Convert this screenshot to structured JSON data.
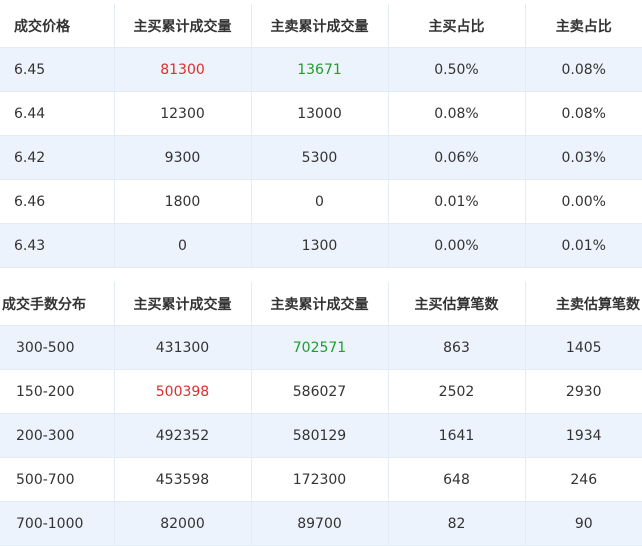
{
  "price_table": {
    "headers": [
      "成交价格",
      "主买累计成交量",
      "主卖累计成交量",
      "主买占比",
      "主卖占比"
    ],
    "rows": [
      [
        "6.45",
        "81300",
        "13671",
        "0.50%",
        "0.08%"
      ],
      [
        "6.44",
        "12300",
        "13000",
        "0.08%",
        "0.08%"
      ],
      [
        "6.42",
        "9300",
        "5300",
        "0.06%",
        "0.03%"
      ],
      [
        "6.46",
        "1800",
        "0",
        "0.01%",
        "0.00%"
      ],
      [
        "6.43",
        "0",
        "1300",
        "0.00%",
        "0.01%"
      ]
    ]
  },
  "lots_table": {
    "headers": [
      "成交手数分布",
      "主买累计成交量",
      "主卖累计成交量",
      "主买估算笔数",
      "主卖估算笔数"
    ],
    "rows": [
      [
        "300-500",
        "431300",
        "702571",
        "863",
        "1405"
      ],
      [
        "150-200",
        "500398",
        "586027",
        "2502",
        "2930"
      ],
      [
        "200-300",
        "492352",
        "580129",
        "1641",
        "1934"
      ],
      [
        "500-700",
        "453598",
        "172300",
        "648",
        "246"
      ],
      [
        "700-1000",
        "82000",
        "89700",
        "82",
        "90"
      ]
    ]
  },
  "colors": {
    "highlight_buy": "#d9302c",
    "highlight_sell": "#1f9e2c",
    "row_stripe": "#edf3fc",
    "grid_line": "#e3ebf5"
  }
}
